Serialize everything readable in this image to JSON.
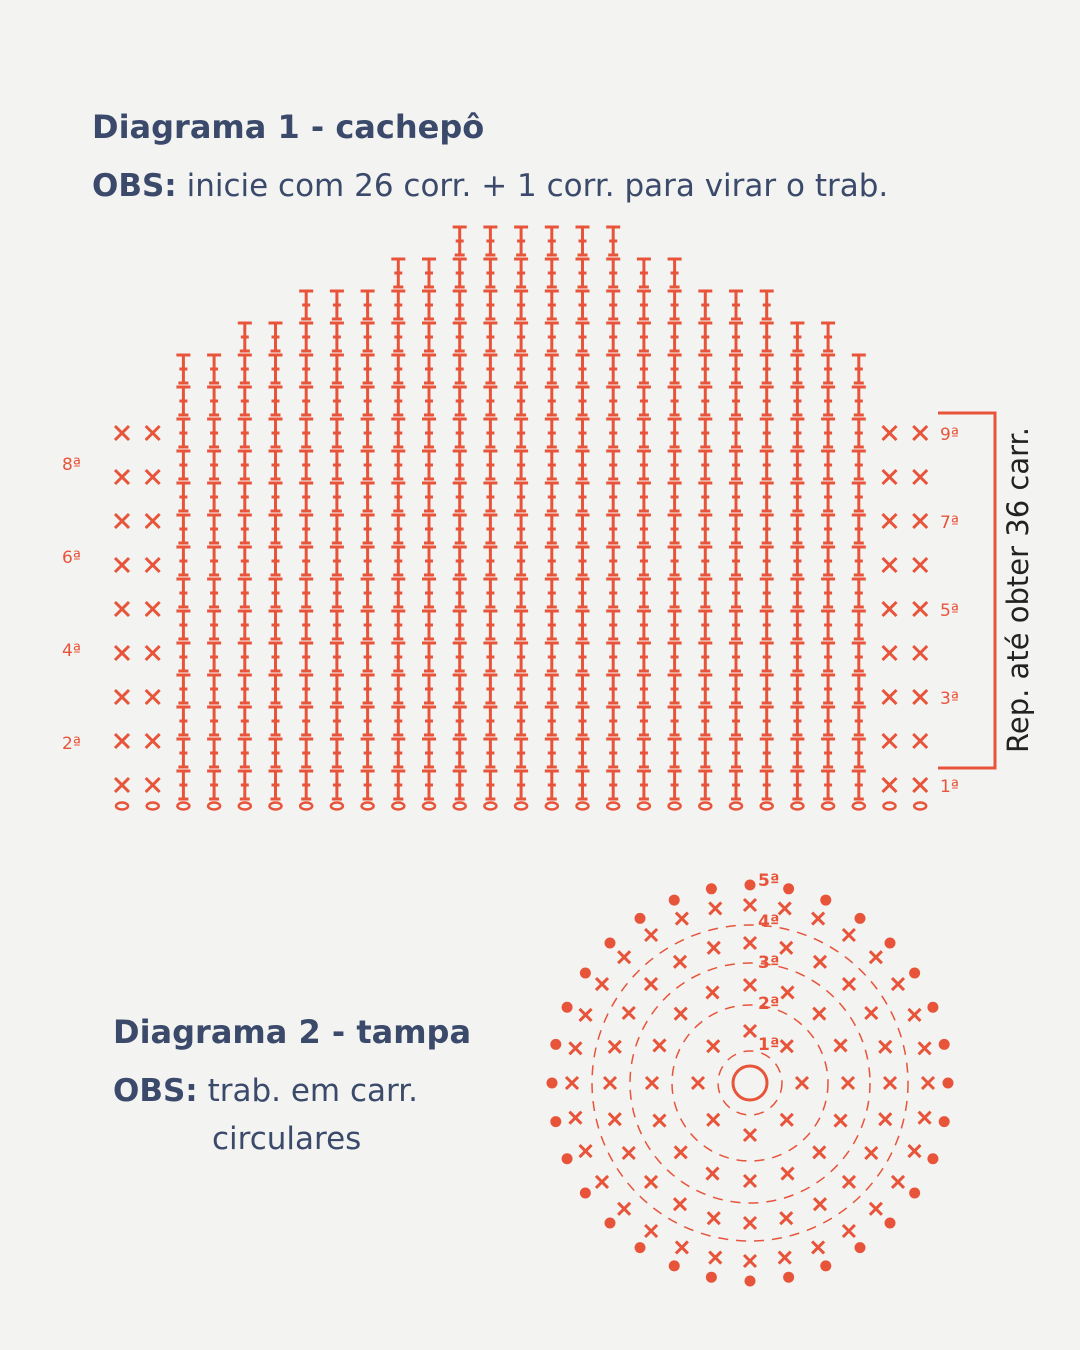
{
  "diagram1": {
    "title": "Diagrama 1 - cachepô",
    "obs_label": "OBS:",
    "obs_text": "inicie com 26 corr. + 1 corr. para virar o trab.",
    "left_rows": [
      "8ª",
      "6ª",
      "4ª",
      "2ª"
    ],
    "right_rows": [
      "9ª",
      "7ª",
      "5ª",
      "3ª",
      "1ª"
    ],
    "repeat_note": "Rep. até obter 36 carr."
  },
  "diagram2": {
    "title": "Diagrama 2 - tampa",
    "obs_label": "OBS:",
    "obs_text_1": "trab. em carr.",
    "obs_text_2": "circulares",
    "rounds": [
      "1ª",
      "2ª",
      "3ª",
      "4ª",
      "5ª"
    ]
  }
}
